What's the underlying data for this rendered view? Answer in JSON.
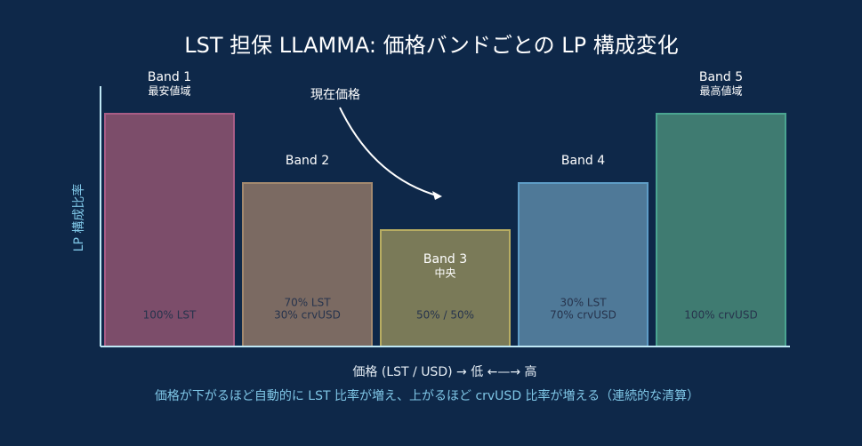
{
  "title": "LST 担保 LLAMMA: 価格バンドごとの LP 構成変化",
  "y_axis_label": "LP 構成比率",
  "x_axis_label": "価格 (LST / USD)  →  低 ←—→ 高",
  "note": "価格が下がるほど自動的に LST 比率が増え、上がるほど crvUSD 比率が増える（連続的な清算）",
  "annotation": "現在価格",
  "bands": [
    {
      "label": "Band 1",
      "sublabel": "最安値域",
      "composition": [
        "100% LST"
      ]
    },
    {
      "label": "Band 2",
      "composition": [
        "70% LST",
        "30% crvUSD"
      ]
    },
    {
      "label": "Band 3",
      "sublabel": "中央",
      "composition": [
        "50% / 50%"
      ]
    },
    {
      "label": "Band 4",
      "composition": [
        "30% LST",
        "70% crvUSD"
      ]
    },
    {
      "label": "Band 5",
      "sublabel": "最高値域",
      "composition": [
        "100% crvUSD"
      ]
    }
  ]
}
